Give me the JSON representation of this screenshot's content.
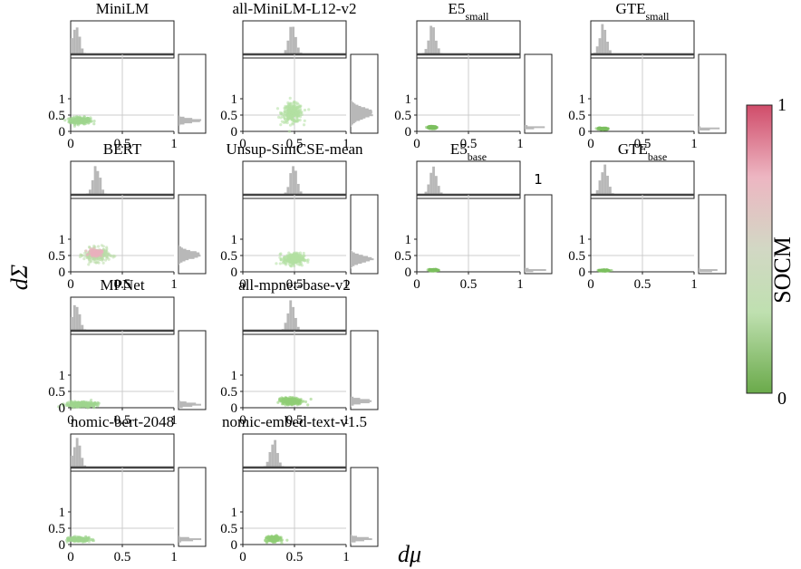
{
  "axis_labels": {
    "x": "dμ",
    "y": "dΣ"
  },
  "colorbar": {
    "label": "SOCM",
    "max_label": "1",
    "min_label": "0",
    "colors": [
      "#d04c6a",
      "#edb6c2",
      "#d2d8c4",
      "#bfe0b0",
      "#6aaa4a"
    ]
  },
  "chart_data": [
    {
      "type": "scatter",
      "title": {
        "base": "MiniLM",
        "sub": ""
      },
      "xlim": [
        0,
        1
      ],
      "ylim": [
        0,
        1
      ],
      "xticks": [
        "0",
        "0.5",
        "1"
      ],
      "yticks": [
        "0",
        "0.5",
        "1"
      ],
      "series": [
        {
          "center": [
            0.09,
            0.33
          ],
          "spread": [
            0.05,
            0.05
          ],
          "color": "#9fd58e"
        }
      ],
      "x_hist_peak": 0.05,
      "y_hist_peak": 0.33
    },
    {
      "type": "scatter",
      "title": {
        "base": "all-MiniLM-L12-v2",
        "sub": ""
      },
      "xlim": [
        0,
        1
      ],
      "ylim": [
        0,
        1
      ],
      "xticks": [
        "0",
        "0.5",
        "1"
      ],
      "yticks": [
        "0",
        "0.5",
        "1"
      ],
      "series": [
        {
          "center": [
            0.48,
            0.56
          ],
          "spread": [
            0.05,
            0.14
          ],
          "color": "#b3e0a2"
        }
      ],
      "x_hist_peak": 0.48,
      "y_hist_peak": 0.56
    },
    {
      "type": "scatter",
      "title": {
        "base": "E5",
        "sub": "small"
      },
      "xlim": [
        0,
        1
      ],
      "ylim": [
        0,
        1
      ],
      "xticks": [
        "0",
        "0.5",
        "1"
      ],
      "yticks": [
        "0",
        "0.5",
        "1"
      ],
      "series": [
        {
          "center": [
            0.15,
            0.12
          ],
          "spread": [
            0.02,
            0.015
          ],
          "color": "#7cbf5e"
        }
      ],
      "x_hist_peak": 0.15,
      "y_hist_peak": 0.12
    },
    {
      "type": "scatter",
      "title": {
        "base": "GTE",
        "sub": "small"
      },
      "xlim": [
        0,
        1
      ],
      "ylim": [
        0,
        1
      ],
      "xticks": [
        "0",
        "0.5",
        "1"
      ],
      "yticks": [
        "0",
        "0.5",
        "1"
      ],
      "series": [
        {
          "center": [
            0.12,
            0.08
          ],
          "spread": [
            0.02,
            0.01
          ],
          "color": "#7cbf5e"
        }
      ],
      "x_hist_peak": 0.12,
      "y_hist_peak": 0.08
    },
    {
      "type": "scatter",
      "title": {
        "base": "BERT",
        "sub": ""
      },
      "xlim": [
        0,
        1
      ],
      "ylim": [
        0,
        1
      ],
      "xticks": [
        "0",
        "0.5",
        "1"
      ],
      "yticks": [
        "0",
        "0.5",
        "1"
      ],
      "series": [
        {
          "center": [
            0.25,
            0.52
          ],
          "spread": [
            0.06,
            0.1
          ],
          "color": "#b9dda8"
        },
        {
          "center": [
            0.24,
            0.58
          ],
          "spread": [
            0.03,
            0.05
          ],
          "color": "#eab0bd"
        }
      ],
      "x_hist_peak": 0.25,
      "y_hist_peak": 0.52
    },
    {
      "type": "scatter",
      "title": {
        "base": "Unsup-SimCSE-mean",
        "sub": ""
      },
      "xlim": [
        0,
        1
      ],
      "ylim": [
        0,
        1
      ],
      "xticks": [
        "0",
        "0.5",
        "1"
      ],
      "yticks": [
        "0",
        "0.5",
        "1"
      ],
      "series": [
        {
          "center": [
            0.49,
            0.39
          ],
          "spread": [
            0.05,
            0.09
          ],
          "color": "#b3e0a2"
        }
      ],
      "x_hist_peak": 0.49,
      "y_hist_peak": 0.39
    },
    {
      "type": "scatter",
      "title": {
        "base": "E5",
        "sub": "base"
      },
      "xlim": [
        0,
        1
      ],
      "ylim": [
        0,
        1
      ],
      "xticks": [
        "0",
        "0.5",
        "1"
      ],
      "yticks": [
        "0",
        "0.5",
        "1"
      ],
      "series": [
        {
          "center": [
            0.16,
            0.05
          ],
          "spread": [
            0.02,
            0.01
          ],
          "color": "#7cbf5e"
        }
      ],
      "x_hist_peak": 0.16,
      "y_hist_peak": 0.05,
      "annotation": "1"
    },
    {
      "type": "scatter",
      "title": {
        "base": "GTE",
        "sub": "base"
      },
      "xlim": [
        0,
        1
      ],
      "ylim": [
        0,
        1
      ],
      "xticks": [
        "0",
        "0.5",
        "1"
      ],
      "yticks": [
        "0",
        "0.5",
        "1"
      ],
      "series": [
        {
          "center": [
            0.13,
            0.04
          ],
          "spread": [
            0.02,
            0.008
          ],
          "color": "#7cbf5e"
        }
      ],
      "x_hist_peak": 0.13,
      "y_hist_peak": 0.04
    },
    {
      "type": "scatter",
      "title": {
        "base": "MPNet",
        "sub": ""
      },
      "xlim": [
        0,
        1
      ],
      "ylim": [
        0,
        1
      ],
      "xticks": [
        "0",
        "0.5",
        "1"
      ],
      "yticks": [
        "0",
        "0.5",
        "1"
      ],
      "series": [
        {
          "center": [
            0.1,
            0.1
          ],
          "spread": [
            0.07,
            0.04
          ],
          "color": "#9fd58e"
        }
      ],
      "x_hist_peak": 0.05,
      "y_hist_peak": 0.1
    },
    {
      "type": "scatter",
      "title": {
        "base": "all-mpnet-base-v2",
        "sub": ""
      },
      "xlim": [
        0,
        1
      ],
      "ylim": [
        0,
        1
      ],
      "xticks": [
        "0",
        "0.5",
        "1"
      ],
      "yticks": [
        "0",
        "0.5",
        "1"
      ],
      "series": [
        {
          "center": [
            0.47,
            0.2
          ],
          "spread": [
            0.05,
            0.05
          ],
          "color": "#8fce74"
        }
      ],
      "x_hist_peak": 0.47,
      "y_hist_peak": 0.2
    },
    {
      "type": "scatter",
      "title": {
        "base": "nomic-bert-2048",
        "sub": ""
      },
      "xlim": [
        0,
        1
      ],
      "ylim": [
        0,
        1
      ],
      "xticks": [
        "0",
        "0.5",
        "1"
      ],
      "yticks": [
        "0",
        "0.5",
        "1"
      ],
      "series": [
        {
          "center": [
            0.08,
            0.16
          ],
          "spread": [
            0.05,
            0.03
          ],
          "color": "#9fd58e"
        }
      ],
      "x_hist_peak": 0.06,
      "y_hist_peak": 0.16
    },
    {
      "type": "scatter",
      "title": {
        "base": "nomic-embed-text-v1.5",
        "sub": ""
      },
      "xlim": [
        0,
        1
      ],
      "ylim": [
        0,
        1
      ],
      "xticks": [
        "0",
        "0.5",
        "1"
      ],
      "yticks": [
        "0",
        "0.5",
        "1"
      ],
      "series": [
        {
          "center": [
            0.3,
            0.17
          ],
          "spread": [
            0.03,
            0.04
          ],
          "color": "#8fce74"
        }
      ],
      "x_hist_peak": 0.3,
      "y_hist_peak": 0.17
    }
  ]
}
